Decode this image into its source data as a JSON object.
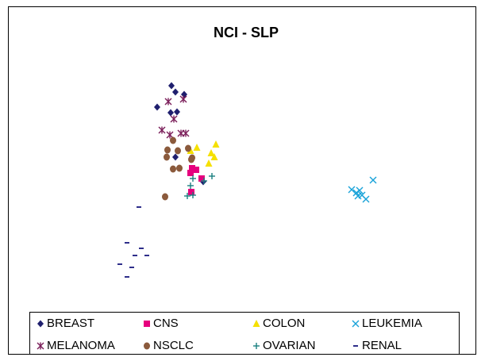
{
  "chart_data": {
    "type": "scatter",
    "title": "NCI - SLP",
    "xlim": [
      0,
      570
    ],
    "ylim": [
      0,
      325
    ],
    "series": [
      {
        "name": "BREAST",
        "color": "#1f1f6e",
        "marker": "diamond",
        "x": [
          196,
          201,
          178,
          195,
          203,
          212,
          201,
          236
        ],
        "y": [
          277,
          269,
          250,
          243,
          244,
          266,
          187,
          156
        ]
      },
      {
        "name": "CNS",
        "color": "#e6007e",
        "marker": "square",
        "x": [
          222,
          227,
          234,
          221,
          220
        ],
        "y": [
          173,
          171,
          160,
          143,
          167
        ]
      },
      {
        "name": "COLON",
        "color": "#f5e000",
        "marker": "triangle",
        "x": [
          252,
          228,
          246,
          250,
          243,
          220
        ],
        "y": [
          203,
          199,
          192,
          187,
          179,
          195
        ]
      },
      {
        "name": "LEUKEMIA",
        "color": "#1aa3d9",
        "marker": "x",
        "x": [
          450,
          423,
          429,
          433,
          436,
          441,
          431
        ],
        "y": [
          158,
          146,
          142,
          145,
          139,
          134,
          138
        ]
      },
      {
        "name": "MELANOMA",
        "color": "#7b1f5a",
        "marker": "asterisk",
        "x": [
          211,
          192,
          199,
          184,
          208,
          214,
          194
        ],
        "y": [
          260,
          257,
          235,
          221,
          217,
          217,
          215
        ]
      },
      {
        "name": "NSCLC",
        "color": "#8b5a3c",
        "marker": "circle",
        "x": [
          198,
          191,
          204,
          217,
          190,
          206,
          221,
          198,
          188,
          222
        ],
        "y": [
          208,
          196,
          195,
          198,
          187,
          173,
          184,
          172,
          137,
          186
        ]
      },
      {
        "name": "OVARIAN",
        "color": "#1a7f7f",
        "marker": "plus",
        "x": [
          223,
          237,
          247,
          216,
          223,
          220
        ],
        "y": [
          160,
          157,
          163,
          138,
          139,
          151
        ]
      },
      {
        "name": "RENAL",
        "color": "#2e2e8a",
        "marker": "dash",
        "x": [
          155,
          140,
          158,
          150,
          165,
          131,
          146,
          140
        ],
        "y": [
          124,
          79,
          72,
          63,
          63,
          52,
          48,
          36
        ]
      }
    ]
  }
}
